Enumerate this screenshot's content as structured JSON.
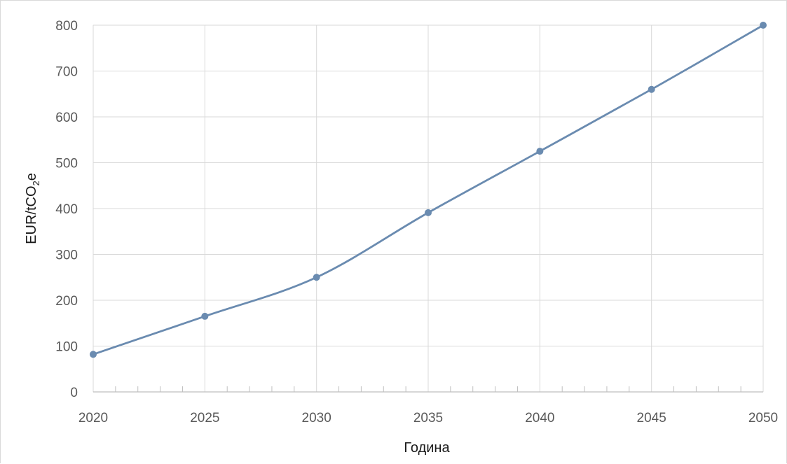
{
  "chart_data": {
    "type": "line",
    "x": [
      2020,
      2025,
      2030,
      2035,
      2040,
      2045,
      2050
    ],
    "series": [
      {
        "values": [
          82,
          165,
          250,
          391,
          525,
          660,
          800
        ]
      }
    ],
    "xlabel": "Година",
    "ylabel_main": "EUR/tCO",
    "ylabel_sub": "2",
    "ylabel_tail": "e",
    "xlim": [
      2020,
      2050
    ],
    "ylim": [
      0,
      800
    ],
    "x_ticks": [
      2020,
      2025,
      2030,
      2035,
      2040,
      2045,
      2050
    ],
    "y_ticks": [
      0,
      100,
      200,
      300,
      400,
      500,
      600,
      700,
      800
    ],
    "grid": true,
    "smooth": true,
    "colors": {
      "line": "#6a8bb0",
      "marker": "#6a8bb0",
      "grid": "#d9d9d9",
      "axis": "#bfbfbf"
    }
  }
}
